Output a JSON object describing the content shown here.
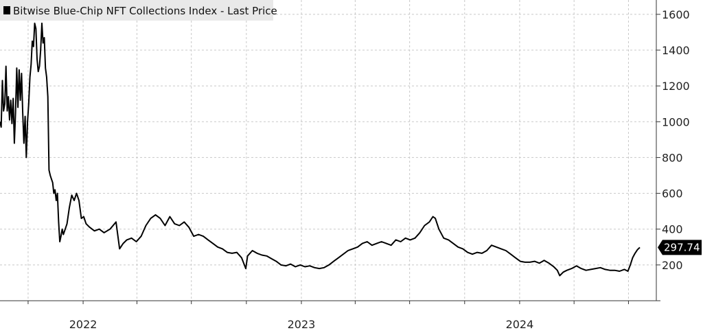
{
  "chart_data": {
    "type": "line",
    "title": "",
    "xlabel": "",
    "ylabel": "",
    "legend": {
      "placement": "top-left",
      "entries": [
        "Bitwise Blue-Chip NFT Collections Index - Last Price"
      ]
    },
    "y_axis": {
      "side": "right",
      "ylim": [
        0,
        1680
      ],
      "ticks": [
        200,
        400,
        600,
        800,
        1000,
        1200,
        1400,
        1600
      ]
    },
    "x_axis": {
      "range": [
        "2021-08-15",
        "2024-07-20"
      ],
      "tick_labels": [
        "2022",
        "2023",
        "2024"
      ],
      "tick_dates": [
        "2022-01-01",
        "2023-01-01",
        "2024-01-01"
      ],
      "gridlines": [
        "2021-10-01",
        "2022-01-01",
        "2022-04-01",
        "2022-07-01",
        "2022-10-01",
        "2023-01-01",
        "2023-04-01",
        "2023-07-01",
        "2023-10-01",
        "2024-01-01",
        "2024-04-01",
        "2024-07-01"
      ]
    },
    "grid": true,
    "last_value_label": "297.74",
    "series": [
      {
        "name": "Bitwise Blue-Chip NFT Collections Index - Last Price",
        "color": "#000000",
        "points": [
          [
            "2021-08-15",
            1000
          ],
          [
            "2021-08-17",
            970
          ],
          [
            "2021-08-19",
            1230
          ],
          [
            "2021-08-21",
            1060
          ],
          [
            "2021-08-23",
            1100
          ],
          [
            "2021-08-25",
            1310
          ],
          [
            "2021-08-27",
            1060
          ],
          [
            "2021-08-29",
            1140
          ],
          [
            "2021-08-31",
            1010
          ],
          [
            "2021-09-02",
            1120
          ],
          [
            "2021-09-04",
            990
          ],
          [
            "2021-09-06",
            1130
          ],
          [
            "2021-09-08",
            880
          ],
          [
            "2021-09-10",
            1050
          ],
          [
            "2021-09-12",
            1300
          ],
          [
            "2021-09-14",
            1080
          ],
          [
            "2021-09-16",
            1290
          ],
          [
            "2021-09-18",
            1120
          ],
          [
            "2021-09-20",
            1270
          ],
          [
            "2021-09-22",
            1050
          ],
          [
            "2021-09-24",
            880
          ],
          [
            "2021-09-26",
            1030
          ],
          [
            "2021-09-28",
            800
          ],
          [
            "2021-09-30",
            1000
          ],
          [
            "2021-10-02",
            1100
          ],
          [
            "2021-10-04",
            1250
          ],
          [
            "2021-10-06",
            1320
          ],
          [
            "2021-10-08",
            1450
          ],
          [
            "2021-10-10",
            1420
          ],
          [
            "2021-10-12",
            1550
          ],
          [
            "2021-10-14",
            1520
          ],
          [
            "2021-10-16",
            1350
          ],
          [
            "2021-10-18",
            1280
          ],
          [
            "2021-10-20",
            1310
          ],
          [
            "2021-10-22",
            1400
          ],
          [
            "2021-10-24",
            1550
          ],
          [
            "2021-10-26",
            1440
          ],
          [
            "2021-10-28",
            1470
          ],
          [
            "2021-10-30",
            1300
          ],
          [
            "2021-11-01",
            1250
          ],
          [
            "2021-11-03",
            1140
          ],
          [
            "2021-11-05",
            730
          ],
          [
            "2021-11-07",
            700
          ],
          [
            "2021-11-09",
            680
          ],
          [
            "2021-11-11",
            660
          ],
          [
            "2021-11-13",
            600
          ],
          [
            "2021-11-15",
            620
          ],
          [
            "2021-11-17",
            560
          ],
          [
            "2021-11-19",
            600
          ],
          [
            "2021-11-21",
            440
          ],
          [
            "2021-11-23",
            330
          ],
          [
            "2021-11-25",
            360
          ],
          [
            "2021-11-27",
            400
          ],
          [
            "2021-11-29",
            370
          ],
          [
            "2021-12-01",
            390
          ],
          [
            "2021-12-05",
            430
          ],
          [
            "2021-12-09",
            520
          ],
          [
            "2021-12-13",
            590
          ],
          [
            "2021-12-17",
            560
          ],
          [
            "2021-12-21",
            600
          ],
          [
            "2021-12-25",
            560
          ],
          [
            "2021-12-29",
            460
          ],
          [
            "2022-01-02",
            470
          ],
          [
            "2022-01-06",
            430
          ],
          [
            "2022-01-12",
            410
          ],
          [
            "2022-01-20",
            390
          ],
          [
            "2022-01-28",
            400
          ],
          [
            "2022-02-05",
            380
          ],
          [
            "2022-02-15",
            400
          ],
          [
            "2022-02-25",
            440
          ],
          [
            "2022-03-03",
            290
          ],
          [
            "2022-03-09",
            320
          ],
          [
            "2022-03-15",
            340
          ],
          [
            "2022-03-23",
            350
          ],
          [
            "2022-03-31",
            330
          ],
          [
            "2022-04-08",
            360
          ],
          [
            "2022-04-16",
            420
          ],
          [
            "2022-04-24",
            460
          ],
          [
            "2022-05-02",
            480
          ],
          [
            "2022-05-10",
            460
          ],
          [
            "2022-05-18",
            420
          ],
          [
            "2022-05-26",
            470
          ],
          [
            "2022-06-03",
            430
          ],
          [
            "2022-06-11",
            420
          ],
          [
            "2022-06-19",
            440
          ],
          [
            "2022-06-27",
            410
          ],
          [
            "2022-07-05",
            360
          ],
          [
            "2022-07-13",
            370
          ],
          [
            "2022-07-21",
            360
          ],
          [
            "2022-07-29",
            340
          ],
          [
            "2022-08-06",
            320
          ],
          [
            "2022-08-14",
            300
          ],
          [
            "2022-08-22",
            290
          ],
          [
            "2022-08-30",
            270
          ],
          [
            "2022-09-07",
            265
          ],
          [
            "2022-09-15",
            270
          ],
          [
            "2022-09-23",
            240
          ],
          [
            "2022-09-30",
            180
          ],
          [
            "2022-10-03",
            250
          ],
          [
            "2022-10-11",
            280
          ],
          [
            "2022-10-19",
            265
          ],
          [
            "2022-10-27",
            255
          ],
          [
            "2022-11-04",
            250
          ],
          [
            "2022-11-12",
            235
          ],
          [
            "2022-11-20",
            220
          ],
          [
            "2022-11-28",
            200
          ],
          [
            "2022-12-06",
            195
          ],
          [
            "2022-12-14",
            205
          ],
          [
            "2022-12-22",
            190
          ],
          [
            "2022-12-30",
            200
          ],
          [
            "2023-01-07",
            190
          ],
          [
            "2023-01-15",
            195
          ],
          [
            "2023-01-23",
            185
          ],
          [
            "2023-01-31",
            180
          ],
          [
            "2023-02-08",
            185
          ],
          [
            "2023-02-16",
            200
          ],
          [
            "2023-02-24",
            220
          ],
          [
            "2023-03-04",
            240
          ],
          [
            "2023-03-12",
            260
          ],
          [
            "2023-03-20",
            280
          ],
          [
            "2023-03-28",
            290
          ],
          [
            "2023-04-05",
            300
          ],
          [
            "2023-04-13",
            320
          ],
          [
            "2023-04-21",
            330
          ],
          [
            "2023-04-29",
            310
          ],
          [
            "2023-05-07",
            320
          ],
          [
            "2023-05-15",
            330
          ],
          [
            "2023-05-23",
            320
          ],
          [
            "2023-05-31",
            310
          ],
          [
            "2023-06-08",
            340
          ],
          [
            "2023-06-16",
            330
          ],
          [
            "2023-06-24",
            350
          ],
          [
            "2023-07-02",
            340
          ],
          [
            "2023-07-10",
            350
          ],
          [
            "2023-07-18",
            380
          ],
          [
            "2023-07-26",
            420
          ],
          [
            "2023-08-03",
            440
          ],
          [
            "2023-08-09",
            470
          ],
          [
            "2023-08-13",
            460
          ],
          [
            "2023-08-19",
            400
          ],
          [
            "2023-08-27",
            350
          ],
          [
            "2023-09-04",
            340
          ],
          [
            "2023-09-12",
            320
          ],
          [
            "2023-09-20",
            300
          ],
          [
            "2023-09-28",
            290
          ],
          [
            "2023-10-06",
            270
          ],
          [
            "2023-10-14",
            260
          ],
          [
            "2023-10-22",
            270
          ],
          [
            "2023-10-30",
            265
          ],
          [
            "2023-11-07",
            280
          ],
          [
            "2023-11-15",
            310
          ],
          [
            "2023-11-23",
            300
          ],
          [
            "2023-12-01",
            290
          ],
          [
            "2023-12-09",
            280
          ],
          [
            "2023-12-17",
            260
          ],
          [
            "2023-12-25",
            240
          ],
          [
            "2024-01-02",
            220
          ],
          [
            "2024-01-10",
            215
          ],
          [
            "2024-01-18",
            215
          ],
          [
            "2024-01-26",
            220
          ],
          [
            "2024-02-03",
            210
          ],
          [
            "2024-02-11",
            225
          ],
          [
            "2024-02-19",
            210
          ],
          [
            "2024-02-27",
            190
          ],
          [
            "2024-03-04",
            170
          ],
          [
            "2024-03-08",
            140
          ],
          [
            "2024-03-14",
            160
          ],
          [
            "2024-03-20",
            170
          ],
          [
            "2024-03-28",
            180
          ],
          [
            "2024-04-05",
            195
          ],
          [
            "2024-04-13",
            180
          ],
          [
            "2024-04-21",
            170
          ],
          [
            "2024-04-29",
            175
          ],
          [
            "2024-05-07",
            180
          ],
          [
            "2024-05-15",
            185
          ],
          [
            "2024-05-23",
            175
          ],
          [
            "2024-05-31",
            170
          ],
          [
            "2024-06-08",
            170
          ],
          [
            "2024-06-16",
            165
          ],
          [
            "2024-06-24",
            175
          ],
          [
            "2024-06-30",
            165
          ],
          [
            "2024-07-04",
            200
          ],
          [
            "2024-07-08",
            240
          ],
          [
            "2024-07-12",
            265
          ],
          [
            "2024-07-16",
            285
          ],
          [
            "2024-07-20",
            297.74
          ]
        ]
      }
    ]
  }
}
